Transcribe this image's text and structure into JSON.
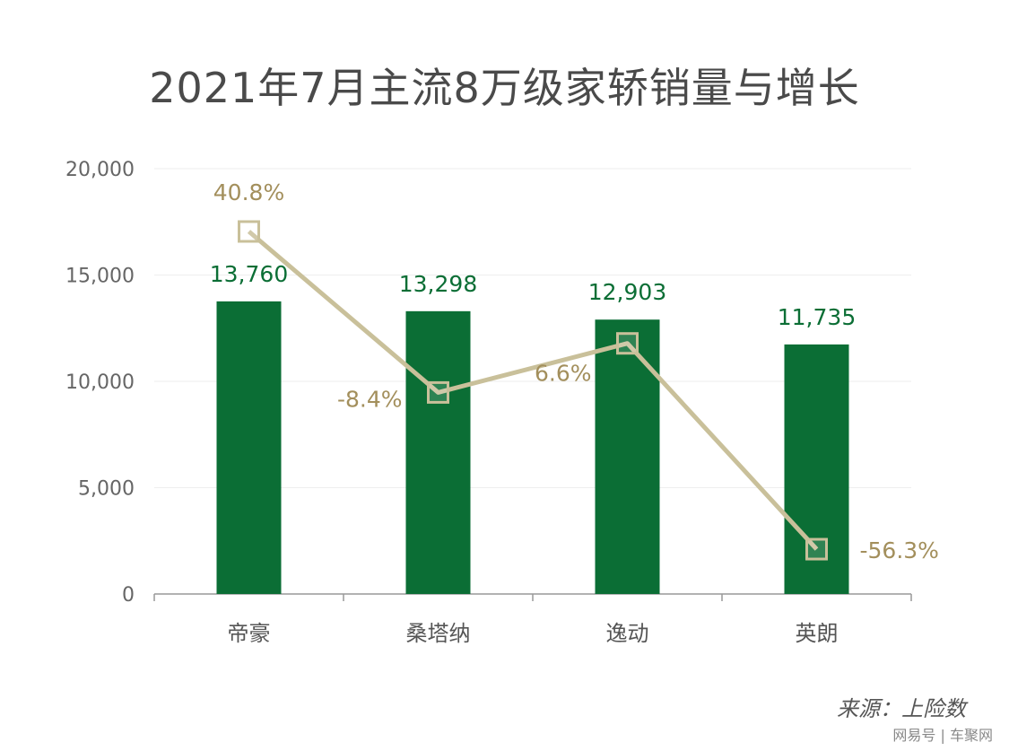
{
  "title": "2021年7月主流8万级家轿销量与增长",
  "source": "来源：上险数",
  "watermark": "网易号 | 车聚网",
  "colors": {
    "bar": "#0b6e35",
    "bar_label": "#0b6e35",
    "line": "#c9c09a",
    "line_label": "#a38f5c",
    "axis": "#666666",
    "grid": "#eeeeee"
  },
  "chart_data": {
    "type": "bar",
    "categories": [
      "帝豪",
      "桑塔纳",
      "逸动",
      "英朗"
    ],
    "series": [
      {
        "values": [
          13760,
          13298,
          12903,
          11735
        ],
        "labels": [
          "13,760",
          "13,298",
          "12,903",
          "11,735"
        ]
      },
      {
        "type": "line",
        "values": [
          40.8,
          -8.4,
          6.6,
          -56.3
        ],
        "labels": [
          "40.8%",
          "-8.4%",
          "6.6%",
          "-56.3%"
        ],
        "marker": "square"
      }
    ],
    "ylim": [
      0,
      20000
    ],
    "yticks": [
      0,
      5000,
      10000,
      15000,
      20000
    ],
    "ytick_labels": [
      "0",
      "5,000",
      "10,000",
      "15,000",
      "20,000"
    ],
    "y2lim": [
      -70,
      60
    ],
    "grid": true,
    "xlabel": "",
    "ylabel": ""
  }
}
